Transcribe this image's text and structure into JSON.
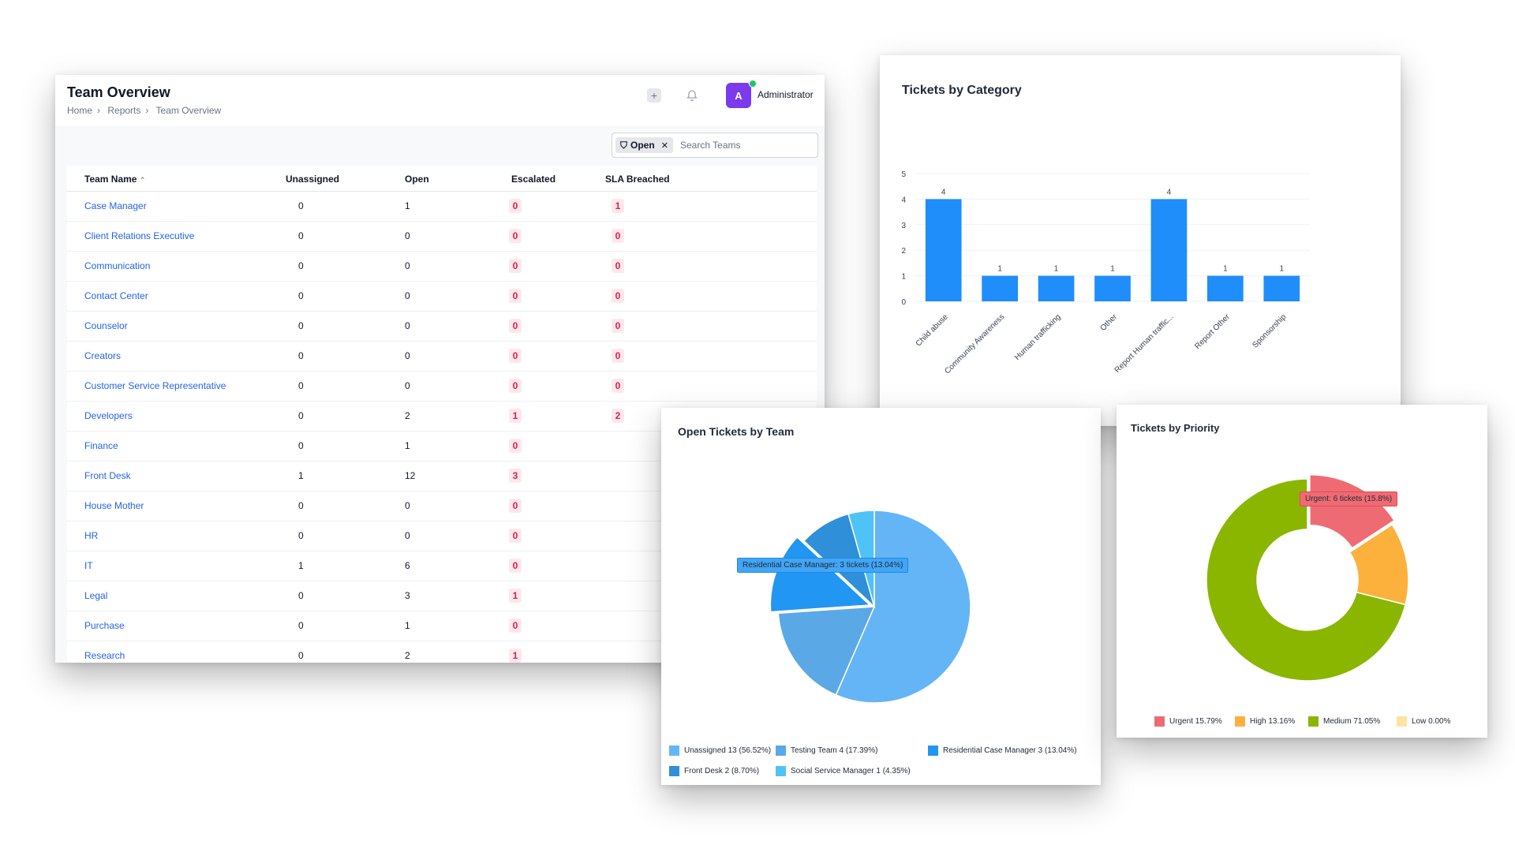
{
  "team_overview": {
    "title": "Team Overview",
    "breadcrumbs": [
      "Home",
      "Reports",
      "Team Overview"
    ],
    "user": {
      "initial": "A",
      "name": "Administrator"
    },
    "filter_chip": "Open",
    "search_placeholder": "Search Teams",
    "columns": [
      "Team Name",
      "Unassigned",
      "Open",
      "Escalated",
      "SLA Breached"
    ],
    "rows": [
      {
        "team": "Case Manager",
        "unassigned": "0",
        "open": "1",
        "escalated": "0",
        "sla": "1"
      },
      {
        "team": "Client Relations Executive",
        "unassigned": "0",
        "open": "0",
        "escalated": "0",
        "sla": "0"
      },
      {
        "team": "Communication",
        "unassigned": "0",
        "open": "0",
        "escalated": "0",
        "sla": "0"
      },
      {
        "team": "Contact Center",
        "unassigned": "0",
        "open": "0",
        "escalated": "0",
        "sla": "0"
      },
      {
        "team": "Counselor",
        "unassigned": "0",
        "open": "0",
        "escalated": "0",
        "sla": "0"
      },
      {
        "team": "Creators",
        "unassigned": "0",
        "open": "0",
        "escalated": "0",
        "sla": "0"
      },
      {
        "team": "Customer Service Representative",
        "unassigned": "0",
        "open": "0",
        "escalated": "0",
        "sla": "0"
      },
      {
        "team": "Developers",
        "unassigned": "0",
        "open": "2",
        "escalated": "1",
        "sla": "2"
      },
      {
        "team": "Finance",
        "unassigned": "0",
        "open": "1",
        "escalated": "0",
        "sla": ""
      },
      {
        "team": "Front Desk",
        "unassigned": "1",
        "open": "12",
        "escalated": "3",
        "sla": ""
      },
      {
        "team": "House Mother",
        "unassigned": "0",
        "open": "0",
        "escalated": "0",
        "sla": ""
      },
      {
        "team": "HR",
        "unassigned": "0",
        "open": "0",
        "escalated": "0",
        "sla": ""
      },
      {
        "team": "IT",
        "unassigned": "1",
        "open": "6",
        "escalated": "0",
        "sla": ""
      },
      {
        "team": "Legal",
        "unassigned": "0",
        "open": "3",
        "escalated": "1",
        "sla": ""
      },
      {
        "team": "Purchase",
        "unassigned": "0",
        "open": "1",
        "escalated": "0",
        "sla": ""
      },
      {
        "team": "Research",
        "unassigned": "0",
        "open": "2",
        "escalated": "1",
        "sla": ""
      }
    ],
    "icons": {
      "plus": "plus-icon",
      "bell": "bell-icon",
      "filter": "filter-icon",
      "close": "close-icon",
      "sort": "sort-asc-icon"
    }
  },
  "chart_data": [
    {
      "type": "bar",
      "title": "Tickets by Category",
      "categories": [
        "Child abuse",
        "Community Awareness",
        "Human trafficking",
        "Other",
        "Report Human traffic...",
        "Report Other",
        "Sponsorship"
      ],
      "values": [
        4,
        1,
        1,
        1,
        4,
        1,
        1
      ],
      "ylim": [
        0,
        5
      ],
      "yticks": [
        "0",
        "1",
        "2",
        "3",
        "4",
        "5"
      ],
      "grid": true,
      "color": "#1f8efa"
    },
    {
      "type": "pie",
      "title": "Open Tickets by Team",
      "slices": [
        {
          "label": "Unassigned",
          "legend": "Unassigned  13 (56.52%)",
          "value": 13,
          "color": "#64b5f6"
        },
        {
          "label": "Testing Team",
          "legend": "Testing Team  4 (17.39%)",
          "value": 4,
          "color": "#5aa9e6"
        },
        {
          "label": "Residential Case Manager",
          "legend": "Residential Case Manager  3 (13.04%)",
          "value": 3,
          "color": "#2196f3"
        },
        {
          "label": "Front Desk",
          "legend": "Front Desk  2 (8.70%)",
          "value": 2,
          "color": "#2f8fd8"
        },
        {
          "label": "Social Service Manager",
          "legend": "Social Service Manager  1 (4.35%)",
          "value": 1,
          "color": "#4fc3f7"
        }
      ],
      "highlighted": 2,
      "tooltip": "Residential Case Manager: 3 tickets (13.04%)",
      "legend": "bottom"
    },
    {
      "type": "pie",
      "title": "Tickets by Priority",
      "donut": true,
      "slices": [
        {
          "label": "Urgent",
          "legend": "Urgent  15.79%",
          "value": 15.79,
          "color": "#ef6b73"
        },
        {
          "label": "High",
          "legend": "High  13.16%",
          "value": 13.16,
          "color": "#fbb13c"
        },
        {
          "label": "Medium",
          "legend": "Medium  71.05%",
          "value": 71.05,
          "color": "#8ab600"
        },
        {
          "label": "Low",
          "legend": "Low  0.00%",
          "value": 0,
          "color": "#fde4a0"
        }
      ],
      "highlighted": 0,
      "tooltip": "Urgent: 6 tickets (15.8%)",
      "legend": "bottom"
    }
  ]
}
